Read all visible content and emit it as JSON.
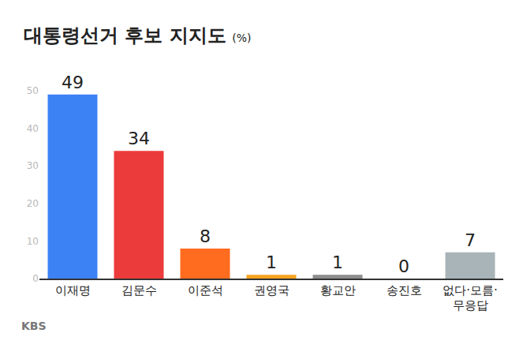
{
  "chart_data": {
    "type": "bar",
    "title": "대통령선거 후보 지지도",
    "subtitle": "(%)",
    "categories": [
      "이재명",
      "김문수",
      "이준석",
      "권영국",
      "황교안",
      "송진호",
      "없다·모름·무응답"
    ],
    "values": [
      49,
      34,
      8,
      1,
      1,
      0,
      7
    ],
    "colors": [
      "#3d82f5",
      "#ec3b3b",
      "#ff6b1f",
      "#f5a31f",
      "#8c8c8c",
      "#b0b0b0",
      "#a8b4b7"
    ],
    "ylim": [
      0,
      50
    ],
    "yticks": [
      0,
      10,
      20,
      30,
      40,
      50
    ],
    "grid": false,
    "data_labels": true,
    "annotations": [
      "KBS"
    ]
  }
}
